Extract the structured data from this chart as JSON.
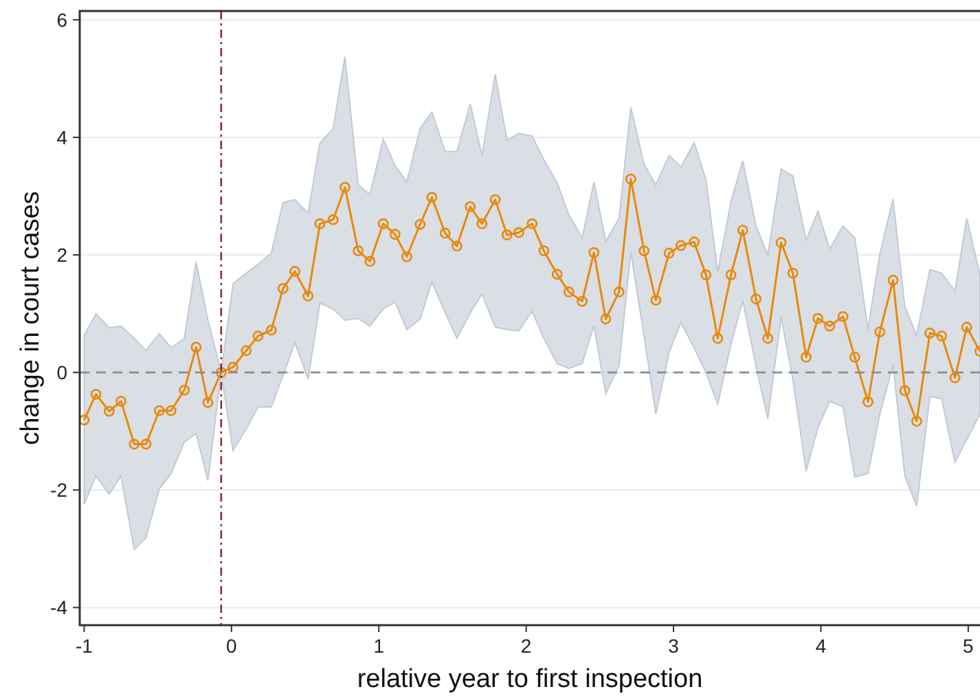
{
  "chart_data": {
    "type": "line",
    "xlabel": "relative year to first inspection",
    "ylabel": "change in court cases",
    "x": [
      -1.0,
      -0.92,
      -0.83,
      -0.75,
      -0.66,
      -0.58,
      -0.49,
      -0.41,
      -0.32,
      -0.24,
      -0.16,
      -0.07,
      0.01,
      0.1,
      0.18,
      0.27,
      0.35,
      0.43,
      0.52,
      0.6,
      0.69,
      0.77,
      0.86,
      0.94,
      1.03,
      1.11,
      1.19,
      1.28,
      1.36,
      1.45,
      1.53,
      1.62,
      1.7,
      1.79,
      1.87,
      1.95,
      2.04,
      2.12,
      2.21,
      2.29,
      2.38,
      2.46,
      2.54,
      2.63,
      2.71,
      2.8,
      2.88,
      2.97,
      3.05,
      3.14,
      3.22,
      3.3,
      3.39,
      3.47,
      3.56,
      3.64,
      3.73,
      3.81,
      3.9,
      3.98,
      4.06,
      4.15,
      4.23,
      4.32,
      4.4,
      4.49,
      4.57,
      4.65,
      4.74,
      4.82,
      4.91,
      4.99,
      5.08
    ],
    "series": [
      {
        "color": "#e8890c",
        "values": [
          -0.81,
          -0.37,
          -0.66,
          -0.49,
          -1.22,
          -1.22,
          -0.65,
          -0.65,
          -0.3,
          0.43,
          -0.51,
          0,
          0.09,
          0.37,
          0.62,
          0.72,
          1.43,
          1.72,
          1.3,
          2.53,
          2.6,
          3.15,
          2.07,
          1.89,
          2.53,
          2.35,
          1.97,
          2.52,
          2.98,
          2.37,
          2.15,
          2.82,
          2.53,
          2.94,
          2.34,
          2.38,
          2.53,
          2.07,
          1.67,
          1.37,
          1.21,
          2.04,
          0.91,
          1.37,
          3.29,
          2.07,
          1.23,
          2.03,
          2.16,
          2.22,
          1.66,
          0.58,
          1.66,
          2.42,
          1.25,
          0.58,
          2.21,
          1.69,
          0.26,
          0.92,
          0.79,
          0.95,
          0.26,
          -0.5,
          0.69,
          1.57,
          -0.31,
          -0.83,
          0.67,
          0.62,
          -0.09,
          0.77,
          0.36
        ],
        "lower": [
          -2.24,
          -1.76,
          -2.07,
          -1.76,
          -3.01,
          -2.81,
          -1.98,
          -1.72,
          -1.18,
          -1.04,
          -1.84,
          0,
          -1.33,
          -0.96,
          -0.59,
          -0.59,
          -0.05,
          0.51,
          -0.11,
          1.18,
          1.08,
          0.89,
          0.92,
          0.79,
          1.08,
          1.2,
          0.73,
          0.91,
          1.54,
          1.02,
          0.58,
          1.01,
          1.34,
          0.77,
          0.73,
          0.71,
          1.04,
          0.58,
          0.15,
          0.07,
          0.15,
          0.8,
          -0.36,
          0.11,
          2.05,
          0.62,
          -0.71,
          0.34,
          0.85,
          0.42,
          0,
          -0.54,
          0.48,
          1.22,
          0.11,
          -0.79,
          0.94,
          -0.12,
          -1.68,
          -0.94,
          -0.49,
          -0.58,
          -1.78,
          -1.72,
          -0.71,
          0.13,
          -1.76,
          -2.27,
          -0.41,
          -0.45,
          -1.53,
          -1.14,
          -0.71
        ],
        "upper": [
          0.63,
          1.0,
          0.76,
          0.79,
          0.58,
          0.37,
          0.66,
          0.42,
          0.58,
          1.88,
          0.89,
          0,
          1.51,
          1.69,
          1.84,
          2.03,
          2.89,
          2.94,
          2.71,
          3.9,
          4.15,
          5.37,
          3.19,
          3.03,
          3.97,
          3.52,
          3.24,
          4.15,
          4.43,
          3.76,
          3.76,
          4.57,
          3.69,
          5.07,
          3.95,
          4.07,
          4.02,
          3.62,
          3.23,
          2.68,
          2.29,
          3.24,
          2.23,
          2.62,
          4.51,
          3.54,
          3.19,
          3.69,
          3.5,
          3.91,
          3.28,
          1.71,
          2.91,
          3.6,
          2.49,
          2.0,
          3.46,
          3.34,
          2.25,
          2.74,
          2.1,
          2.49,
          2.29,
          0.73,
          2.02,
          2.95,
          1.12,
          0.63,
          1.75,
          1.69,
          1.38,
          2.62,
          1.67
        ]
      }
    ],
    "xlim": [
      -1.03,
      5.08
    ],
    "xticks": [
      -1,
      0,
      1,
      2,
      3,
      4,
      5
    ],
    "ylim": [
      -4.3,
      6.15
    ],
    "yticks": [
      -4,
      -2,
      0,
      2,
      4,
      6
    ],
    "grid": "y",
    "marker": "circle",
    "line_style": "solid",
    "ref_lines": [
      {
        "axis": "x",
        "value": -0.07,
        "color": "#8b2a3a",
        "line_style": "dashdot"
      },
      {
        "axis": "y",
        "value": 0,
        "color": "#8c8c8c",
        "line_style": "dashed"
      }
    ]
  }
}
